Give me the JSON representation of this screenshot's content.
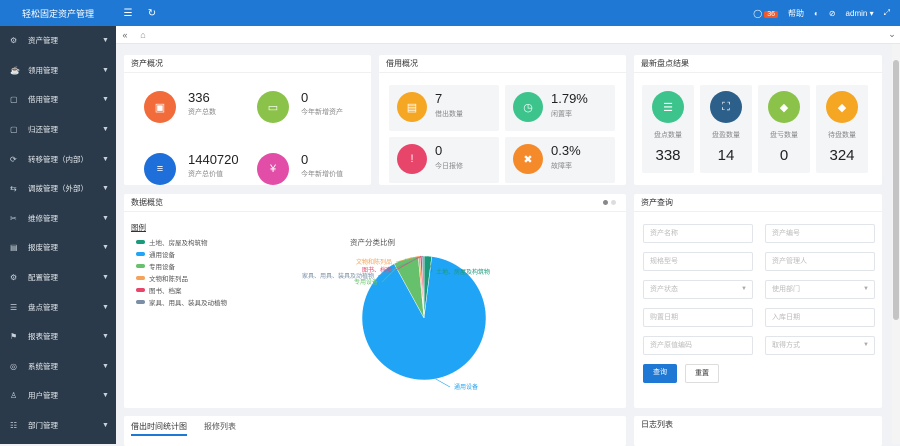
{
  "brand": "轻松固定资产管理",
  "topbar": {
    "menu_icon": "menu-icon",
    "refresh_icon": "refresh-icon",
    "notify_count": "36",
    "help_label": "帮助",
    "user": "admin"
  },
  "sidebar": {
    "items": [
      {
        "icon": "assets-icon",
        "glyph": "⚙",
        "label": "资产管理"
      },
      {
        "icon": "use-icon",
        "glyph": "☕",
        "label": "领用管理"
      },
      {
        "icon": "borrow-icon",
        "glyph": "▢",
        "label": "借用管理"
      },
      {
        "icon": "return-icon",
        "glyph": "▢",
        "label": "归还管理"
      },
      {
        "icon": "transfer-in-icon",
        "glyph": "⟳",
        "label": "转移管理（内部）"
      },
      {
        "icon": "transfer-out-icon",
        "glyph": "⇆",
        "label": "调拨管理（外部）"
      },
      {
        "icon": "repair-icon",
        "glyph": "✂",
        "label": "维修管理"
      },
      {
        "icon": "dispose-icon",
        "glyph": "▤",
        "label": "报废管理"
      },
      {
        "icon": "setting-icon",
        "glyph": "⚙",
        "label": "配置管理"
      },
      {
        "icon": "inventory-icon",
        "glyph": "☰",
        "label": "盘点管理"
      },
      {
        "icon": "report-icon",
        "glyph": "⚑",
        "label": "报表管理"
      },
      {
        "icon": "system-icon",
        "glyph": "◎",
        "label": "系统管理"
      },
      {
        "icon": "user-icon",
        "glyph": "♙",
        "label": "用户管理"
      },
      {
        "icon": "dept-icon",
        "glyph": "☷",
        "label": "部门管理"
      }
    ]
  },
  "asset_overview": {
    "title": "资产概况",
    "items": [
      {
        "value": "336",
        "label": "资产总数",
        "color": "#f26b3a",
        "icon": "monitor-icon",
        "glyph": "▣"
      },
      {
        "value": "0",
        "label": "今年新增资产",
        "color": "#8bc34a",
        "icon": "screen-icon",
        "glyph": "▭"
      },
      {
        "value": "1440720",
        "label": "资产总价值",
        "color": "#1e6fd9",
        "icon": "database-icon",
        "glyph": "≡"
      },
      {
        "value": "0",
        "label": "今年新增价值",
        "color": "#e24ea7",
        "icon": "money-icon",
        "glyph": "¥"
      }
    ]
  },
  "borrow_overview": {
    "title": "借用概况",
    "items": [
      {
        "value": "7",
        "label": "借出数量",
        "color": "#f5a623",
        "icon": "doc-icon",
        "glyph": "▤"
      },
      {
        "value": "1.79%",
        "label": "闲置率",
        "color": "#3cc48c",
        "icon": "clock-icon",
        "glyph": "◷"
      },
      {
        "value": "0",
        "label": "今日报修",
        "color": "#e8456a",
        "icon": "warning-icon",
        "glyph": "!"
      },
      {
        "value": "0.3%",
        "label": "故障率",
        "color": "#f58a2a",
        "icon": "tools-icon",
        "glyph": "✖"
      }
    ]
  },
  "inventory_result": {
    "title": "最新盘点结果",
    "items": [
      {
        "value": "338",
        "label": "盘点数量",
        "color": "#3cc48c",
        "icon": "list-icon",
        "glyph": "☰"
      },
      {
        "value": "14",
        "label": "盘盈数量",
        "color": "#2c5f8a",
        "icon": "scan-icon",
        "glyph": "⛶"
      },
      {
        "value": "0",
        "label": "盘亏数量",
        "color": "#8bc34a",
        "icon": "gem-icon",
        "glyph": "◆"
      },
      {
        "value": "324",
        "label": "待盘数量",
        "color": "#f5a623",
        "icon": "gem2-icon",
        "glyph": "◆"
      }
    ]
  },
  "data_overview": {
    "title": "数据概览",
    "legend_title": "图例",
    "chart_title": "资产分类比例"
  },
  "chart_data": {
    "type": "pie",
    "title": "资产分类比例",
    "legend_placement": "top-left",
    "slices": [
      {
        "name": "土地、房屋及构筑物",
        "value": 2,
        "color": "#1a9a7a"
      },
      {
        "name": "通用设备",
        "value": 90,
        "color": "#20a4f5"
      },
      {
        "name": "专用设备",
        "value": 6.5,
        "color": "#67c06b"
      },
      {
        "name": "文物和陈列品",
        "value": 0.5,
        "color": "#f5a25a"
      },
      {
        "name": "图书、档案",
        "value": 0.5,
        "color": "#e8456a"
      },
      {
        "name": "家具、用具、装具及动植物",
        "value": 0.5,
        "color": "#7a8fa6"
      }
    ],
    "labels": [
      {
        "text": "土地、房屋及构筑物"
      },
      {
        "text": "通用设备"
      },
      {
        "text": "专用设备"
      },
      {
        "text": "文物和陈列品"
      },
      {
        "text": "图书、档案"
      },
      {
        "text": "家具、用具、装具及动植物"
      }
    ]
  },
  "asset_query": {
    "title": "资产查询",
    "fields": [
      {
        "placeholder": "资产名称",
        "select": false
      },
      {
        "placeholder": "资产编号",
        "select": false
      },
      {
        "placeholder": "规格型号",
        "select": false
      },
      {
        "placeholder": "资产管理人",
        "select": false
      },
      {
        "placeholder": "资产状态",
        "select": true
      },
      {
        "placeholder": "使用部门",
        "select": true
      },
      {
        "placeholder": "购置日期",
        "select": false
      },
      {
        "placeholder": "入库日期",
        "select": false
      },
      {
        "placeholder": "资产原值编码",
        "select": false
      },
      {
        "placeholder": "取得方式",
        "select": true
      }
    ],
    "search_label": "查询",
    "reset_label": "重置"
  },
  "bottom_left": {
    "tab_active": "借出时间统计图",
    "tab_other": "报修列表"
  },
  "bottom_right": {
    "title": "日志列表"
  }
}
